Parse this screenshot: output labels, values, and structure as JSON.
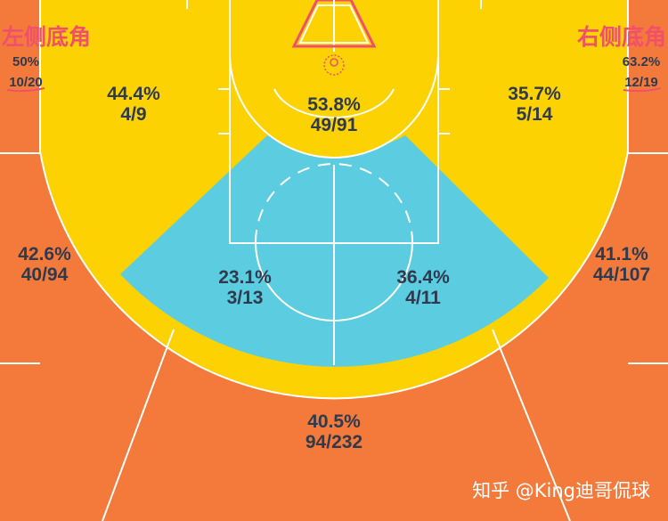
{
  "labels": {
    "left_corner_title": "左侧底角",
    "right_corner_title": "右侧底角",
    "watermark": "知乎 @King迪哥侃球"
  },
  "zones": {
    "left_corner": {
      "pct": "50%",
      "made_att": "10/20"
    },
    "right_corner": {
      "pct": "63.2%",
      "made_att": "12/19"
    },
    "left_midrange_baseline": {
      "pct": "44.4%",
      "made_att": "4/9"
    },
    "paint_top": {
      "pct": "53.8%",
      "made_att": "49/91"
    },
    "right_midrange_baseline": {
      "pct": "35.7%",
      "made_att": "5/14"
    },
    "left_wing_three": {
      "pct": "42.6%",
      "made_att": "40/94"
    },
    "right_wing_three": {
      "pct": "41.1%",
      "made_att": "44/107"
    },
    "left_elbow": {
      "pct": "23.1%",
      "made_att": "3/13"
    },
    "right_elbow": {
      "pct": "36.4%",
      "made_att": "4/11"
    },
    "top_three": {
      "pct": "40.5%",
      "made_att": "94/232"
    }
  },
  "colors": {
    "three_point_zone": "#f47a3c",
    "midrange_zone": "#fdd203",
    "elbow_zone": "#5ccce0",
    "corner_title": "#f0506a",
    "stat_text": "#2f3a4d"
  }
}
